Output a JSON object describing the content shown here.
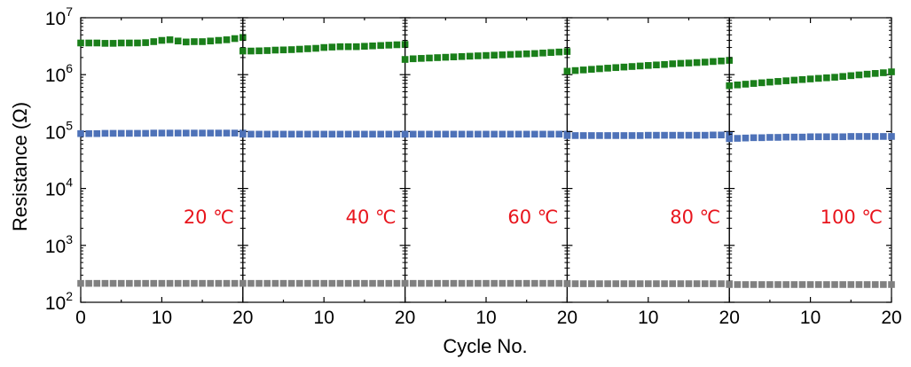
{
  "chart_data": {
    "type": "scatter",
    "ylabel": "Resistance (Ω)",
    "xlabel": "Cycle No.",
    "y_scale": "log",
    "ylim": [
      100,
      10000000
    ],
    "y_ticks": [
      {
        "base": "10",
        "exp": "2"
      },
      {
        "base": "10",
        "exp": "3"
      },
      {
        "base": "10",
        "exp": "4"
      },
      {
        "base": "10",
        "exp": "5"
      },
      {
        "base": "10",
        "exp": "6"
      },
      {
        "base": "10",
        "exp": "7"
      }
    ],
    "xlim": [
      0,
      20
    ],
    "x_tick_labels": [
      "0",
      "10",
      "20"
    ],
    "series_colors": [
      "#1a7f1a",
      "#4e72b8",
      "#808080"
    ],
    "label_color": "#e8141c",
    "panels": [
      {
        "label": "20 ℃",
        "series": [
          {
            "values": [
              3600000.0,
              3600000.0,
              3600000.0,
              3550000.0,
              3550000.0,
              3600000.0,
              3600000.0,
              3600000.0,
              3650000.0,
              3800000.0,
              4000000.0,
              4100000.0,
              3900000.0,
              3750000.0,
              3800000.0,
              3800000.0,
              3900000.0,
              4000000.0,
              4100000.0,
              4300000.0,
              4500000.0
            ]
          },
          {
            "values": [
              92000.0,
              92000.0,
              92000.0,
              93000.0,
              93000.0,
              93000.0,
              93000.0,
              93000.0,
              93000.0,
              94000.0,
              94000.0,
              94000.0,
              94000.0,
              94000.0,
              94000.0,
              94000.0,
              94000.0,
              94000.0,
              94000.0,
              94000.0,
              94000.0
            ]
          },
          {
            "values": [
              215,
              215,
              215,
              215,
              215,
              215,
              215,
              215,
              215,
              215,
              215,
              215,
              215,
              215,
              215,
              215,
              215,
              215,
              215,
              215,
              215
            ]
          }
        ]
      },
      {
        "label": "40 ℃",
        "series": [
          {
            "values": [
              2600000.0,
              2600000.0,
              2620000.0,
              2650000.0,
              2700000.0,
              2720000.0,
              2750000.0,
              2800000.0,
              2850000.0,
              2900000.0,
              3000000.0,
              3050000.0,
              3100000.0,
              3100000.0,
              3100000.0,
              3150000.0,
              3200000.0,
              3250000.0,
              3300000.0,
              3350000.0,
              3400000.0
            ]
          },
          {
            "values": [
              90000.0,
              90000.0,
              90000.0,
              90000.0,
              90000.0,
              90000.0,
              90000.0,
              90000.0,
              90000.0,
              90000.0,
              90000.0,
              90000.0,
              90000.0,
              90000.0,
              90000.0,
              90000.0,
              90000.0,
              90000.0,
              90000.0,
              90000.0,
              90000.0
            ]
          },
          {
            "values": [
              215,
              215,
              215,
              215,
              215,
              215,
              215,
              215,
              215,
              215,
              215,
              215,
              215,
              215,
              215,
              215,
              215,
              215,
              215,
              215,
              215
            ]
          }
        ]
      },
      {
        "label": "60 ℃",
        "series": [
          {
            "values": [
              1850000.0,
              1900000.0,
              1930000.0,
              1960000.0,
              1990000.0,
              2020000.0,
              2050000.0,
              2080000.0,
              2110000.0,
              2140000.0,
              2170000.0,
              2200000.0,
              2230000.0,
              2260000.0,
              2290000.0,
              2320000.0,
              2350000.0,
              2400000.0,
              2450000.0,
              2500000.0,
              2550000.0
            ]
          },
          {
            "values": [
              90000.0,
              90000.0,
              90000.0,
              90000.0,
              90000.0,
              90000.0,
              90000.0,
              90000.0,
              90000.0,
              90000.0,
              90000.0,
              90000.0,
              90000.0,
              90000.0,
              90000.0,
              90000.0,
              90000.0,
              90000.0,
              90000.0,
              90000.0,
              90000.0
            ]
          },
          {
            "values": [
              215,
              215,
              215,
              215,
              215,
              215,
              215,
              215,
              215,
              215,
              215,
              215,
              215,
              215,
              215,
              215,
              215,
              215,
              215,
              215,
              215
            ]
          }
        ]
      },
      {
        "label": "80 ℃",
        "series": [
          {
            "values": [
              1150000.0,
              1180000.0,
              1210000.0,
              1240000.0,
              1270000.0,
              1300000.0,
              1330000.0,
              1360000.0,
              1390000.0,
              1420000.0,
              1450000.0,
              1480000.0,
              1510000.0,
              1550000.0,
              1580000.0,
              1600000.0,
              1630000.0,
              1660000.0,
              1700000.0,
              1740000.0,
              1780000.0
            ]
          },
          {
            "values": [
              85000.0,
              85000.0,
              85000.0,
              85000.0,
              85000.0,
              85000.0,
              85000.0,
              85000.0,
              85000.0,
              85000.0,
              86000.0,
              86000.0,
              86000.0,
              86000.0,
              86000.0,
              86000.0,
              86000.0,
              86000.0,
              87000.0,
              87000.0,
              87000.0
            ]
          },
          {
            "values": [
              212,
              212,
              212,
              212,
              212,
              212,
              212,
              212,
              212,
              212,
              212,
              212,
              212,
              212,
              212,
              212,
              212,
              212,
              212,
              212,
              212
            ]
          }
        ]
      },
      {
        "label": "100 ℃",
        "series": [
          {
            "values": [
              640000.0,
              660000.0,
              680000.0,
              700000.0,
              720000.0,
              740000.0,
              760000.0,
              780000.0,
              800000.0,
              820000.0,
              840000.0,
              860000.0,
              880000.0,
              900000.0,
              930000.0,
              960000.0,
              990000.0,
              1020000.0,
              1050000.0,
              1080000.0,
              1120000.0
            ]
          },
          {
            "values": [
              75000.0,
              76000.0,
              77000.0,
              78000.0,
              78000.0,
              79000.0,
              79000.0,
              80000.0,
              80000.0,
              80000.0,
              81000.0,
              81000.0,
              81000.0,
              81000.0,
              81000.0,
              82000.0,
              82000.0,
              82000.0,
              82000.0,
              82000.0,
              82000.0
            ]
          },
          {
            "values": [
              205,
              205,
              205,
              205,
              205,
              205,
              205,
              205,
              205,
              205,
              205,
              205,
              205,
              205,
              205,
              205,
              205,
              205,
              205,
              205,
              205
            ]
          }
        ]
      }
    ]
  }
}
